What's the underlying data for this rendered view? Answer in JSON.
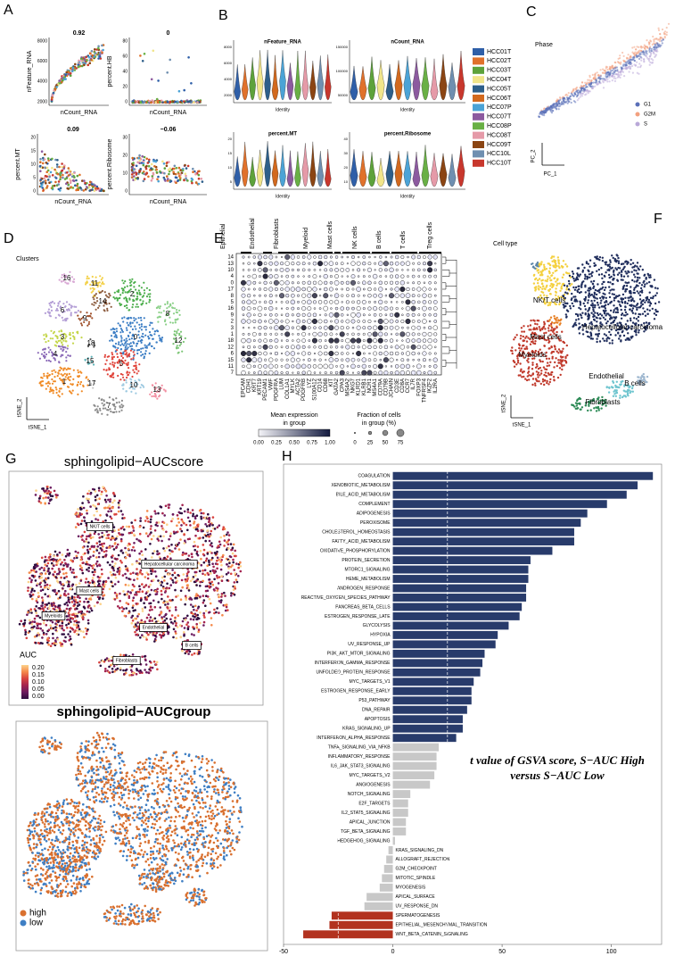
{
  "panels": {
    "A": {
      "letter": "A",
      "plots": [
        {
          "title": "0.92",
          "xlabel": "nCount_RNA",
          "ylabel": "nFeature_RNA",
          "yticks": [
            "2000",
            "4000",
            "6000",
            "8000"
          ]
        },
        {
          "title": "0",
          "xlabel": "nCount_RNA",
          "ylabel": "percent.HB",
          "yticks": [
            "0",
            "20",
            "40",
            "60",
            "80"
          ]
        },
        {
          "title": "0.09",
          "xlabel": "nCount_RNA",
          "ylabel": "percent.MT",
          "yticks": [
            "0",
            "5",
            "10",
            "15",
            "20"
          ]
        },
        {
          "title": "−0.06",
          "xlabel": "nCount_RNA",
          "ylabel": "percent.Ribosome",
          "yticks": [
            "0",
            "10",
            "20",
            "30"
          ]
        }
      ]
    },
    "B": {
      "letter": "B",
      "plots": [
        {
          "title": "nFeature_RNA",
          "xlabel": "Identity",
          "yticks": [
            "2000",
            "4000",
            "6000",
            "8000"
          ]
        },
        {
          "title": "nCount_RNA",
          "xlabel": "Identity",
          "yticks": [
            "50000",
            "100000",
            "150000"
          ]
        },
        {
          "title": "percent.MT",
          "xlabel": "Identity",
          "yticks": [
            "5",
            "10",
            "15",
            "20"
          ]
        },
        {
          "title": "percent.Ribosome",
          "xlabel": "Identity",
          "yticks": [
            "10",
            "20",
            "30",
            "40"
          ]
        }
      ],
      "legend": [
        {
          "label": "HCC01T",
          "color": "#2f5fa8"
        },
        {
          "label": "HCC02T",
          "color": "#e0712b"
        },
        {
          "label": "HCC03T",
          "color": "#5da23b"
        },
        {
          "label": "HCC04T",
          "color": "#f1e58a"
        },
        {
          "label": "HCC05T",
          "color": "#2e5f8a"
        },
        {
          "label": "HCC06T",
          "color": "#d2691e"
        },
        {
          "label": "HCC07P",
          "color": "#4ba3d6"
        },
        {
          "label": "HCC07T",
          "color": "#8c5a9f"
        },
        {
          "label": "HCC08P",
          "color": "#69b045"
        },
        {
          "label": "HCC08T",
          "color": "#e59aa8"
        },
        {
          "label": "HCC09T",
          "color": "#8b4513"
        },
        {
          "label": "HCC10L",
          "color": "#6f8fb0"
        },
        {
          "label": "HCC10T",
          "color": "#c8372d"
        }
      ]
    },
    "C": {
      "letter": "C",
      "title": "Phase",
      "xlabel": "PC_1",
      "ylabel": "PC_2",
      "legend": [
        {
          "label": "G1",
          "color": "#5a6fb8"
        },
        {
          "label": "G2M",
          "color": "#f2a07f"
        },
        {
          "label": "S",
          "color": "#b9a8d8"
        }
      ]
    },
    "D": {
      "letter": "D",
      "title": "Clusters",
      "xlabel": "tSNE_1",
      "ylabel": "tSNE_2",
      "clusters": [
        {
          "label": "0",
          "color": "#3b7dc4"
        },
        {
          "label": "1",
          "color": "#f08a24"
        },
        {
          "label": "2",
          "color": "#4cae4c"
        },
        {
          "label": "3",
          "color": "#c4d64a"
        },
        {
          "label": "4",
          "color": "#8c6bb8"
        },
        {
          "label": "5",
          "color": "#e0433a"
        },
        {
          "label": "6",
          "color": "#b49fd6"
        },
        {
          "label": "7",
          "color": "#8a8a8a"
        },
        {
          "label": "8",
          "color": "#8dd18a"
        },
        {
          "label": "9",
          "color": "#a0522d"
        },
        {
          "label": "10",
          "color": "#9ecae1"
        },
        {
          "label": "11",
          "color": "#f3d046"
        },
        {
          "label": "12",
          "color": "#7cc576"
        },
        {
          "label": "13",
          "color": "#f28ea1"
        },
        {
          "label": "14",
          "color": "#8b5a3c"
        },
        {
          "label": "15",
          "color": "#5db3b8"
        },
        {
          "label": "16",
          "color": "#d8a6d4"
        },
        {
          "label": "17",
          "color": "#c8c8c8"
        },
        {
          "label": "18",
          "color": "#555555"
        }
      ]
    },
    "E": {
      "letter": "E",
      "groups": [
        "Epithelial",
        "Endothelial",
        "Fibroblasts",
        "Myeloid",
        "Mast cells",
        "NK cells",
        "B cells",
        "T cells",
        "Treg cells"
      ],
      "rows": [
        "14",
        "13",
        "10",
        "4",
        "0",
        "17",
        "8",
        "5",
        "16",
        "9",
        "2",
        "3",
        "1",
        "18",
        "12",
        "6",
        "15",
        "11",
        "7"
      ],
      "genes": [
        "EPCAM",
        "CDH1",
        "KRT7",
        "KRT19",
        "PECAM1",
        "VWF",
        "PDGFRA",
        "LUM",
        "COL1A1",
        "MYLK",
        "ACTA2",
        "PDGFRB",
        "LYZ",
        "S100A12",
        "CD14",
        "CD68",
        "KIT",
        "GATA2",
        "CPA3",
        "MS4A2",
        "NKG7",
        "KLRD1",
        "KLRB1",
        "NCR1",
        "MS4A1",
        "CD79A",
        "CD79B",
        "JCHAIN",
        "CD3E",
        "CD8A",
        "CCR7",
        "IL7R",
        "FOXP3",
        "TNFRSF4",
        "IKZF2",
        "IL2RA"
      ],
      "color_legend": {
        "title": [
          "Mean expression",
          "in group"
        ],
        "ticks": [
          "0.00",
          "0.25",
          "0.50",
          "0.75",
          "1.00"
        ]
      },
      "size_legend": {
        "title": [
          "Fraction of cells",
          "in group (%)"
        ],
        "ticks": [
          "0",
          "25",
          "50",
          "75"
        ]
      }
    },
    "F": {
      "letter": "F",
      "title": "Cell type",
      "xlabel": "tSNE_1",
      "ylabel": "tSNE_2",
      "cell_types": [
        {
          "label": "NK/T cells",
          "color": "#f4d03f"
        },
        {
          "label": "Hepatocellular carcinoma",
          "color": "#1f2d5c"
        },
        {
          "label": "Mast cells",
          "color": "#e67e22"
        },
        {
          "label": "Myeloids",
          "color": "#c0392b"
        },
        {
          "label": "Endothelial",
          "color": "#6fc5cf"
        },
        {
          "label": "B cells",
          "color": "#9fb8d0"
        },
        {
          "label": "Fibroblasts",
          "color": "#2e8b57"
        }
      ]
    },
    "G": {
      "letter": "G",
      "score_title": "sphingolipid−AUCscore",
      "cell_labels": [
        "NK/T cells",
        "Hepatocellular carcinoma",
        "Mast cells",
        "Myeloids",
        "Endothelial",
        "B cells",
        "Fibroblasts"
      ],
      "legend_title": "AUC",
      "legend_ticks": [
        "0.20",
        "0.15",
        "0.10",
        "0.05",
        "0.00"
      ],
      "group_title": "sphingolipid−AUCgroup",
      "groups": [
        {
          "label": "high",
          "color": "#d9702f"
        },
        {
          "label": "low",
          "color": "#3f7fc4"
        }
      ]
    },
    "H": {
      "letter": "H"
    }
  },
  "chart_data": {
    "type": "bar",
    "orientation": "horizontal",
    "categories": [
      "COAGULATION",
      "XENOBIOTIC_METABOLISM",
      "BILE_ACID_METABOLISM",
      "COMPLEMENT",
      "ADIPOGENESIS",
      "PEROXISOME",
      "CHOLESTEROL_HOMEOSTASIS",
      "FATTY_ACID_METABOLISM",
      "OXIDATIVE_PHOSPHORYLATION",
      "PROTEIN_SECRETION",
      "MTORC1_SIGNALING",
      "HEME_METABOLISM",
      "ANDROGEN_RESPONSE",
      "REACTIVE_OXYGEN_SPECIES_PATHWAY",
      "PANCREAS_BETA_CELLS",
      "ESTROGEN_RESPONSE_LATE",
      "GLYCOLYSIS",
      "HYPOXIA",
      "UV_RESPONSE_UP",
      "PI3K_AKT_MTOR_SIGNALING",
      "INTERFERON_GAMMA_RESPONSE",
      "UNFOLDED_PROTEIN_RESPONSE",
      "MYC_TARGETS_V1",
      "ESTROGEN_RESPONSE_EARLY",
      "P53_PATHWAY",
      "DNA_REPAIR",
      "APOPTOSIS",
      "KRAS_SIGNALING_UP",
      "INTERFERON_ALPHA_RESPONSE",
      "TNFA_SIGNALING_VIA_NFKB",
      "INFLAMMATORY_RESPONSE",
      "IL6_JAK_STAT3_SIGNALING",
      "MYC_TARGETS_V2",
      "ANGIOGENESIS",
      "NOTCH_SIGNALING",
      "E2F_TARGETS",
      "IL2_STAT5_SIGNALING",
      "APICAL_JUNCTION",
      "TGF_BETA_SIGNALING",
      "HEDGEHOG_SIGNALING",
      "KRAS_SIGNALING_DN",
      "ALLOGRAFT_REJECTION",
      "G2M_CHECKPOINT",
      "MITOTIC_SPINDLE",
      "MYOGENESIS",
      "APICAL_SURFACE",
      "UV_RESPONSE_DN",
      "SPERMATOGENESIS",
      "EPITHELIAL_MESENCHYMAL_TRANSITION",
      "WNT_BETA_CATENIN_SIGNALING"
    ],
    "values": [
      119,
      112,
      107,
      98,
      89,
      86,
      83,
      83,
      73,
      63,
      62,
      62,
      61,
      61,
      59,
      58,
      53,
      48,
      47,
      42,
      41,
      40,
      37,
      36,
      36,
      34,
      32,
      32,
      29,
      21,
      20,
      20,
      19,
      17,
      8,
      7,
      7,
      6,
      6,
      1,
      -2,
      -3,
      -4,
      -5,
      -6,
      -12,
      -13,
      -28,
      -29,
      -41
    ],
    "colors": [
      "#283b6b",
      "#283b6b",
      "#283b6b",
      "#283b6b",
      "#283b6b",
      "#283b6b",
      "#283b6b",
      "#283b6b",
      "#283b6b",
      "#283b6b",
      "#283b6b",
      "#283b6b",
      "#283b6b",
      "#283b6b",
      "#283b6b",
      "#283b6b",
      "#283b6b",
      "#283b6b",
      "#283b6b",
      "#283b6b",
      "#283b6b",
      "#283b6b",
      "#283b6b",
      "#283b6b",
      "#283b6b",
      "#283b6b",
      "#283b6b",
      "#283b6b",
      "#283b6b",
      "#c8c8c8",
      "#c8c8c8",
      "#c8c8c8",
      "#c8c8c8",
      "#c8c8c8",
      "#c8c8c8",
      "#c8c8c8",
      "#c8c8c8",
      "#c8c8c8",
      "#c8c8c8",
      "#c8c8c8",
      "#c8c8c8",
      "#c8c8c8",
      "#c8c8c8",
      "#c8c8c8",
      "#c8c8c8",
      "#c8c8c8",
      "#c8c8c8",
      "#b2321f",
      "#b2321f",
      "#b2321f"
    ],
    "label_colors": [
      "#000000",
      "#000000",
      "#000000",
      "#000000",
      "#000000",
      "#000000",
      "#000000",
      "#000000",
      "#000000",
      "#000000",
      "#000000",
      "#000000",
      "#000000",
      "#000000",
      "#000000",
      "#000000",
      "#000000",
      "#000000",
      "#000000",
      "#000000",
      "#000000",
      "#000000",
      "#000000",
      "#000000",
      "#000000",
      "#000000",
      "#000000",
      "#000000",
      "#000000",
      "#b0b0b0",
      "#b0b0b0",
      "#b0b0b0",
      "#b0b0b0",
      "#b0b0b0",
      "#b0b0b0",
      "#b0b0b0",
      "#b0b0b0",
      "#b0b0b0",
      "#b0b0b0",
      "#b0b0b0",
      "#b0b0b0",
      "#b0b0b0",
      "#b0b0b0",
      "#b0b0b0",
      "#b0b0b0",
      "#b0b0b0",
      "#b0b0b0",
      "#000000",
      "#000000",
      "#000000"
    ],
    "xlim": [
      -50,
      123
    ],
    "xticks": [
      -50,
      0,
      50,
      100
    ],
    "reference_lines": [
      -25,
      25
    ],
    "annotation": [
      "t value of GSVA score, S−AUC High",
      "versus S−AUC Low"
    ]
  }
}
